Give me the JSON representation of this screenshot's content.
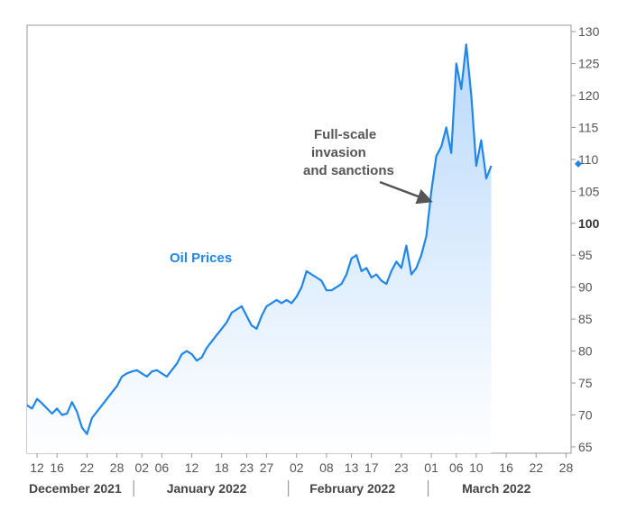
{
  "chart_data": {
    "type": "line",
    "series": [
      {
        "name": "Oil Prices",
        "color": "#1f86ea",
        "points": [
          [
            "2021-12-10",
            71.5
          ],
          [
            "2021-12-11",
            71.0
          ],
          [
            "2021-12-12",
            72.5
          ],
          [
            "2021-12-13",
            71.8
          ],
          [
            "2021-12-14",
            71.0
          ],
          [
            "2021-12-15",
            70.2
          ],
          [
            "2021-12-16",
            71.0
          ],
          [
            "2021-12-17",
            70.0
          ],
          [
            "2021-12-18",
            70.2
          ],
          [
            "2021-12-19",
            72.0
          ],
          [
            "2021-12-20",
            70.5
          ],
          [
            "2021-12-21",
            68.0
          ],
          [
            "2021-12-22",
            67.0
          ],
          [
            "2021-12-23",
            69.5
          ],
          [
            "2021-12-24",
            70.5
          ],
          [
            "2021-12-25",
            71.5
          ],
          [
            "2021-12-26",
            72.5
          ],
          [
            "2021-12-27",
            73.5
          ],
          [
            "2021-12-28",
            74.5
          ],
          [
            "2021-12-29",
            76.0
          ],
          [
            "2021-12-30",
            76.5
          ],
          [
            "2021-12-31",
            76.8
          ],
          [
            "2022-01-01",
            77.0
          ],
          [
            "2022-01-02",
            76.5
          ],
          [
            "2022-01-03",
            76.0
          ],
          [
            "2022-01-04",
            76.8
          ],
          [
            "2022-01-05",
            77.0
          ],
          [
            "2022-01-06",
            76.5
          ],
          [
            "2022-01-07",
            76.0
          ],
          [
            "2022-01-08",
            77.0
          ],
          [
            "2022-01-09",
            78.0
          ],
          [
            "2022-01-10",
            79.5
          ],
          [
            "2022-01-11",
            80.0
          ],
          [
            "2022-01-12",
            79.5
          ],
          [
            "2022-01-13",
            78.5
          ],
          [
            "2022-01-14",
            79.0
          ],
          [
            "2022-01-15",
            80.5
          ],
          [
            "2022-01-16",
            81.5
          ],
          [
            "2022-01-17",
            82.5
          ],
          [
            "2022-01-18",
            83.5
          ],
          [
            "2022-01-19",
            84.5
          ],
          [
            "2022-01-20",
            86.0
          ],
          [
            "2022-01-21",
            86.5
          ],
          [
            "2022-01-22",
            87.0
          ],
          [
            "2022-01-23",
            85.5
          ],
          [
            "2022-01-24",
            84.0
          ],
          [
            "2022-01-25",
            83.5
          ],
          [
            "2022-01-26",
            85.5
          ],
          [
            "2022-01-27",
            87.0
          ],
          [
            "2022-01-28",
            87.5
          ],
          [
            "2022-01-29",
            88.0
          ],
          [
            "2022-01-30",
            87.5
          ],
          [
            "2022-01-31",
            88.0
          ],
          [
            "2022-02-01",
            87.5
          ],
          [
            "2022-02-02",
            88.5
          ],
          [
            "2022-02-03",
            90.0
          ],
          [
            "2022-02-04",
            92.5
          ],
          [
            "2022-02-05",
            92.0
          ],
          [
            "2022-02-06",
            91.5
          ],
          [
            "2022-02-07",
            91.0
          ],
          [
            "2022-02-08",
            89.5
          ],
          [
            "2022-02-09",
            89.5
          ],
          [
            "2022-02-10",
            90.0
          ],
          [
            "2022-02-11",
            90.5
          ],
          [
            "2022-02-12",
            92.0
          ],
          [
            "2022-02-13",
            94.5
          ],
          [
            "2022-02-14",
            95.0
          ],
          [
            "2022-02-15",
            92.5
          ],
          [
            "2022-02-16",
            93.0
          ],
          [
            "2022-02-17",
            91.5
          ],
          [
            "2022-02-18",
            92.0
          ],
          [
            "2022-02-19",
            91.0
          ],
          [
            "2022-02-20",
            90.5
          ],
          [
            "2022-02-21",
            92.5
          ],
          [
            "2022-02-22",
            94.0
          ],
          [
            "2022-02-23",
            93.0
          ],
          [
            "2022-02-24",
            96.5
          ],
          [
            "2022-02-25",
            92.0
          ],
          [
            "2022-02-26",
            93.0
          ],
          [
            "2022-02-27",
            95.0
          ],
          [
            "2022-02-28",
            98.0
          ],
          [
            "2022-03-01",
            105.0
          ],
          [
            "2022-03-02",
            110.5
          ],
          [
            "2022-03-03",
            112.0
          ],
          [
            "2022-03-04",
            115.0
          ],
          [
            "2022-03-05",
            111.0
          ],
          [
            "2022-03-06",
            125.0
          ],
          [
            "2022-03-07",
            121.0
          ],
          [
            "2022-03-08",
            128.0
          ],
          [
            "2022-03-09",
            120.0
          ],
          [
            "2022-03-10",
            109.0
          ],
          [
            "2022-03-11",
            113.0
          ],
          [
            "2022-03-12",
            107.0
          ],
          [
            "2022-03-13",
            109.0
          ]
        ]
      }
    ],
    "annotation": {
      "lines": [
        "Full-scale",
        "invasion",
        "and sanctions"
      ],
      "target": [
        "2022-02-28",
        103.5
      ]
    },
    "y_axis": {
      "ylim": [
        64,
        131
      ],
      "ticks": [
        65,
        70,
        75,
        80,
        85,
        90,
        95,
        100,
        105,
        110,
        115,
        120,
        125,
        130
      ],
      "bold_tick": 100,
      "marker_value": 109.3
    },
    "x_axis": {
      "xlim": [
        "2021-12-10",
        "2022-03-29"
      ],
      "tick_dates": [
        "2021-12-12",
        "2021-12-16",
        "2021-12-22",
        "2021-12-28",
        "2022-01-02",
        "2022-01-06",
        "2022-01-12",
        "2022-01-18",
        "2022-01-23",
        "2022-01-27",
        "2022-02-02",
        "2022-02-08",
        "2022-02-13",
        "2022-02-17",
        "2022-02-23",
        "2022-03-01",
        "2022-03-06",
        "2022-03-10",
        "2022-03-16",
        "2022-03-22",
        "2022-03-28"
      ],
      "tick_labels": [
        "12",
        "16",
        "22",
        "28",
        "02",
        "06",
        "12",
        "18",
        "23",
        "27",
        "02",
        "08",
        "13",
        "17",
        "23",
        "01",
        "06",
        "10",
        "16",
        "22",
        "28"
      ],
      "months": [
        {
          "label": "December 2021",
          "date": "2021-12-10"
        },
        {
          "label": "January 2022",
          "date": "2022-01-01"
        },
        {
          "label": "February 2022",
          "date": "2022-02-01"
        },
        {
          "label": "March 2022",
          "date": "2022-03-01"
        }
      ],
      "month_separators": [
        "2021-12-31",
        "2022-01-31",
        "2022-02-28"
      ]
    },
    "style": {
      "line_color": "#1f86ea",
      "fill_top": "#b9d9fb",
      "fill_bottom": "#ffffff",
      "annotation_color": "#555555",
      "axis_color": "#999999"
    }
  }
}
